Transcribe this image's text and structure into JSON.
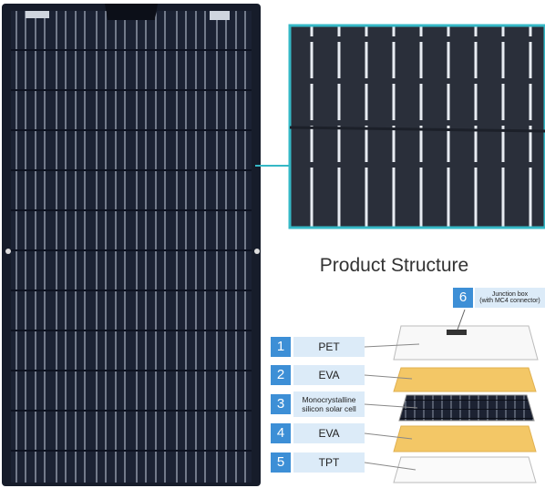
{
  "title": "Product Structure",
  "layers": [
    {
      "number": 1,
      "label": "PET"
    },
    {
      "number": 2,
      "label": "EVA"
    },
    {
      "number": 3,
      "label": "Monocrystalline\nsilicon solar cell"
    },
    {
      "number": 4,
      "label": "EVA"
    },
    {
      "number": 5,
      "label": "TPT"
    }
  ],
  "junction": {
    "number": 6,
    "label": "Junction box\n(with MC4 connector)"
  }
}
